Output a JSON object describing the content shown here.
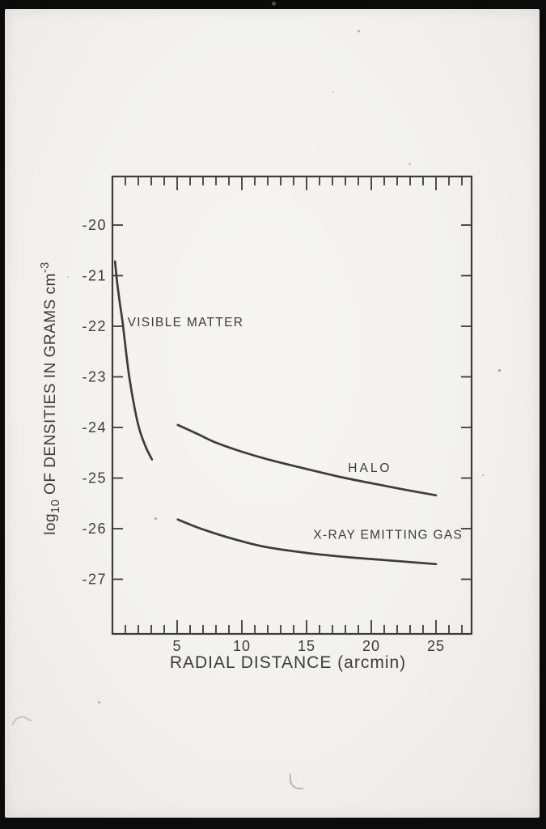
{
  "figure": {
    "kind": "photographed scientific figure",
    "colors": {
      "paper": "#f2f1ee",
      "border": "#0b0b0b",
      "ink": "#3c3c3c"
    }
  },
  "chart_data": {
    "type": "line",
    "title": "",
    "xlabel": "RADIAL DISTANCE (arcmin)",
    "ylabel": "log10 OF DENSITIES IN GRAMS cm^-3",
    "ylabel_parts": [
      [
        "log",
        "n"
      ],
      [
        "10",
        "sub"
      ],
      [
        " OF DENSITIES IN GRAMS cm",
        "n"
      ],
      [
        "-3",
        "sup"
      ]
    ],
    "xlim": [
      0,
      27.75
    ],
    "ylim": [
      -28.08,
      -19.04
    ],
    "x_minor_step": 1,
    "x_major_ticks": [
      5,
      10,
      15,
      20,
      25
    ],
    "x_tick_labels": [
      "5",
      "10",
      "15",
      "20",
      "25"
    ],
    "y_ticks": [
      -20,
      -21,
      -22,
      -23,
      -24,
      -25,
      -26,
      -27
    ],
    "y_tick_labels": [
      "-20",
      "-21",
      "-22",
      "-23",
      "-24",
      "-25",
      "-26",
      "-27"
    ],
    "grid": false,
    "legend": "inline curve annotations",
    "series": [
      {
        "name": "visible-matter",
        "label": "VISIBLE MATTER",
        "label_pos": [
          5.65,
          -21.92
        ],
        "x": [
          0.2,
          0.35,
          0.55,
          0.8,
          1.05,
          1.3,
          1.7,
          2.1,
          2.6,
          3.05
        ],
        "y": [
          -20.72,
          -21.1,
          -21.5,
          -21.95,
          -22.5,
          -23.0,
          -23.6,
          -24.05,
          -24.4,
          -24.63
        ]
      },
      {
        "name": "halo",
        "label": "HALO",
        "label_pos": [
          19.9,
          -24.8
        ],
        "x": [
          5.05,
          6.5,
          8,
          10,
          12,
          15,
          18,
          21,
          23,
          25
        ],
        "y": [
          -23.95,
          -24.12,
          -24.3,
          -24.48,
          -24.63,
          -24.82,
          -25.0,
          -25.15,
          -25.25,
          -25.34
        ]
      },
      {
        "name": "x-ray-emitting-gas",
        "label": "X-RAY EMITTING GAS",
        "label_pos": [
          21.3,
          -26.12
        ],
        "x": [
          5.05,
          6.5,
          8,
          10,
          12,
          15,
          18,
          21,
          23,
          25
        ],
        "y": [
          -25.82,
          -25.97,
          -26.1,
          -26.25,
          -26.37,
          -26.48,
          -26.56,
          -26.62,
          -26.66,
          -26.7
        ]
      }
    ]
  }
}
